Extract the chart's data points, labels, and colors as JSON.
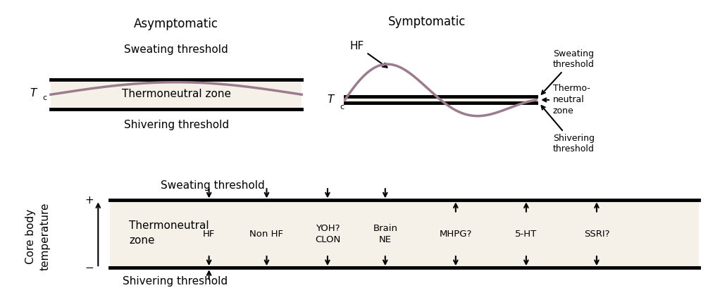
{
  "bg_color": "#ffffff",
  "zone_fill": "#f5f0e8",
  "line_color": "#000000",
  "wave_color": "#9b7b8e",
  "title_asym": "Asymptomatic",
  "title_sym": "Symptomatic",
  "label_sweating": "Sweating threshold",
  "label_shivering": "Shivering threshold",
  "label_tc": "T",
  "label_tc_sub": "c",
  "label_thermoneutral_asym": "Thermoneutral zone",
  "label_thermoneutral_sym_line1": "Thermo-",
  "label_thermoneutral_sym_line2": "neutral",
  "label_thermoneutral_sym_line3": "zone",
  "label_hf_sym": "HF",
  "label_sweating_sym": "Sweating\nthreshold",
  "label_shivering_sym": "Shivering\nthreshold",
  "ylabel": "Core body\ntemperature",
  "label_plus": "+",
  "label_minus": "−",
  "bottom_sweating": "Sweating threshold",
  "bottom_shivering": "Shivering threshold",
  "bottom_labels": [
    "HF",
    "Non HF",
    "YOH?\nCLON",
    "Brain\nNE",
    "MHPG?",
    "5-HT",
    "SSRI?"
  ],
  "bottom_arrows_down": [
    true,
    true,
    true,
    true,
    true,
    true,
    true
  ],
  "bottom_arrows_up": [
    true,
    false,
    false,
    false,
    false,
    false,
    false
  ],
  "bottom_has_up_arrow_top": [
    false,
    false,
    false,
    false,
    true,
    true,
    true
  ],
  "bottom_has_down_arrow_bottom": [
    false,
    true,
    true,
    true,
    false,
    false,
    false
  ],
  "font_size_title": 12,
  "font_size_label": 11,
  "font_size_small": 9
}
